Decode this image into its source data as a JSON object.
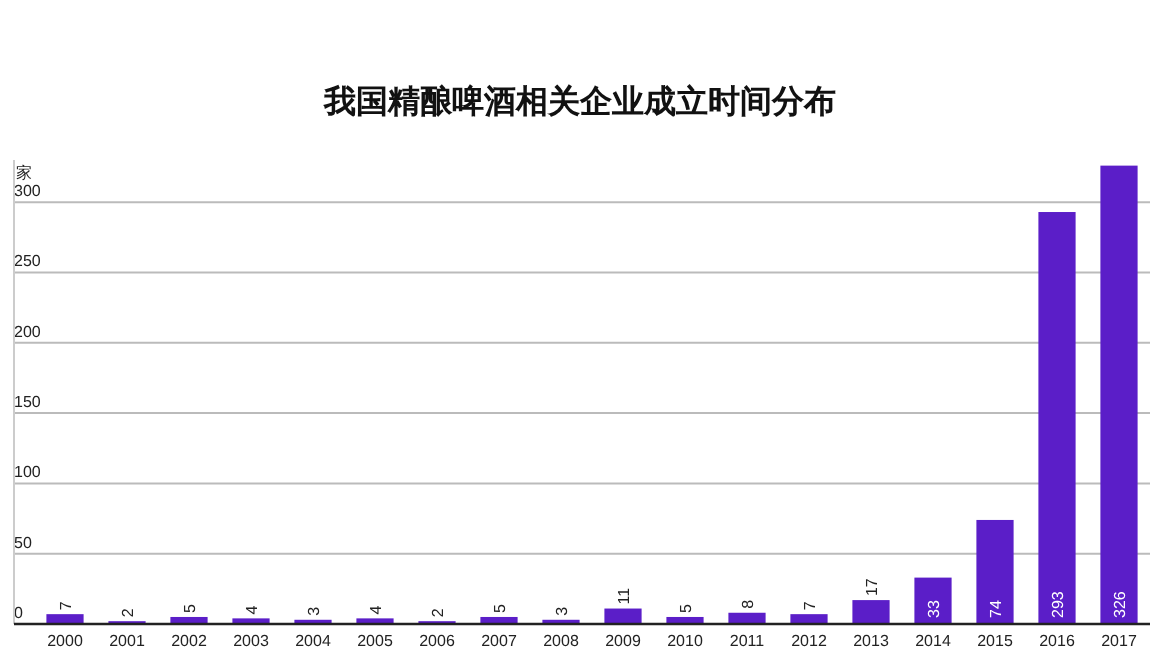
{
  "chart_data": {
    "type": "bar",
    "title": "我国精酿啤酒相关企业成立时间分布",
    "ylabel": "家",
    "categories": [
      "2000",
      "2001",
      "2002",
      "2003",
      "2004",
      "2005",
      "2006",
      "2007",
      "2008",
      "2009",
      "2010",
      "2011",
      "2012",
      "2013",
      "2014",
      "2015",
      "2016",
      "2017"
    ],
    "values": [
      7,
      2,
      5,
      4,
      3,
      4,
      2,
      5,
      3,
      11,
      5,
      8,
      7,
      17,
      33,
      74,
      293,
      326
    ],
    "color": "#5b1ec8",
    "ylim": [
      0,
      330
    ],
    "yticks": [
      0,
      50,
      100,
      150,
      200,
      250,
      300
    ],
    "grid": "y",
    "data_labels": true
  }
}
